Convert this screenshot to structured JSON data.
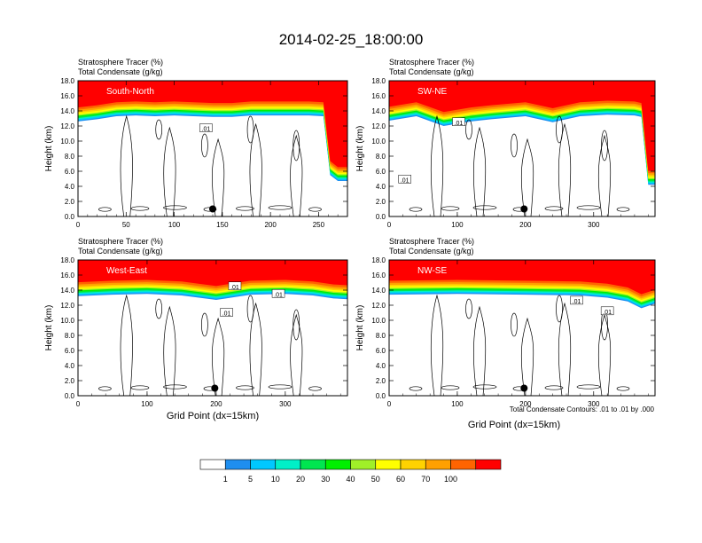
{
  "title": "2014-02-25_18:00:00",
  "panel_titles": [
    "Stratosphere Tracer   (%)",
    "Total Condensate   (g/kg)"
  ],
  "ylabel": "Height (km)",
  "xlabel": "Grid Point (dx=15km)",
  "contour_note": "Total Condensate Contours: .01 to .01 by .000",
  "contour_label": ".01",
  "colorbar": {
    "levels": [
      "1",
      "5",
      "10",
      "20",
      "30",
      "40",
      "50",
      "60",
      "70",
      "100"
    ],
    "colors": [
      "#ffffff",
      "#1e8ef0",
      "#00c8ff",
      "#00f0c8",
      "#00e650",
      "#00f000",
      "#a0f028",
      "#ffff00",
      "#ffd200",
      "#ffa000",
      "#ff6400",
      "#ff0000"
    ]
  },
  "chart_data": [
    {
      "type": "heatmap",
      "name": "South-North",
      "xlim": [
        0,
        280
      ],
      "xticks": [
        "0",
        "50",
        "100",
        "150",
        "200",
        "250"
      ],
      "ylim": [
        0,
        18
      ],
      "yticks": [
        "0.0",
        "2.0",
        "4.0",
        "6.0",
        "8.0",
        "10.0",
        "12.0",
        "14.0",
        "16.0",
        "18.0"
      ],
      "tropopause_km": [
        [
          0,
          14.9
        ],
        [
          20,
          15.2
        ],
        [
          40,
          15.6
        ],
        [
          60,
          15.7
        ],
        [
          80,
          15.6
        ],
        [
          100,
          15.7
        ],
        [
          120,
          15.6
        ],
        [
          140,
          15.5
        ],
        [
          160,
          15.5
        ],
        [
          180,
          15.7
        ],
        [
          200,
          15.7
        ],
        [
          220,
          15.7
        ],
        [
          240,
          15.7
        ],
        [
          255,
          15.6
        ],
        [
          262,
          7.8
        ],
        [
          270,
          7.0
        ],
        [
          280,
          7.0
        ]
      ],
      "dot": [
        140,
        1.0
      ],
      "contour_labels": [
        [
          133,
          11.7
        ]
      ]
    },
    {
      "type": "heatmap",
      "name": "SW-NE",
      "xlim": [
        0,
        390
      ],
      "xticks": [
        "0",
        "100",
        "200",
        "300"
      ],
      "ylim": [
        0,
        18
      ],
      "yticks": [
        "0.0",
        "2.0",
        "4.0",
        "6.0",
        "8.0",
        "10.0",
        "12.0",
        "14.0",
        "16.0",
        "18.0"
      ],
      "tropopause_km": [
        [
          0,
          15.0
        ],
        [
          40,
          15.6
        ],
        [
          80,
          14.3
        ],
        [
          120,
          14.9
        ],
        [
          150,
          15.2
        ],
        [
          200,
          15.6
        ],
        [
          240,
          14.8
        ],
        [
          280,
          15.6
        ],
        [
          320,
          15.8
        ],
        [
          360,
          15.7
        ],
        [
          370,
          15.5
        ],
        [
          380,
          6.5
        ],
        [
          390,
          6.5
        ]
      ],
      "dot": [
        198,
        1.0
      ],
      "contour_labels": [
        [
          102,
          12.5
        ],
        [
          23,
          4.9
        ]
      ]
    },
    {
      "type": "heatmap",
      "name": "West-East",
      "xlim": [
        0,
        390
      ],
      "xticks": [
        "0",
        "100",
        "200",
        "300"
      ],
      "ylim": [
        0,
        18
      ],
      "yticks": [
        "0.0",
        "2.0",
        "4.0",
        "6.0",
        "8.0",
        "10.0",
        "12.0",
        "14.0",
        "16.0",
        "18.0"
      ],
      "tropopause_km": [
        [
          0,
          15.5
        ],
        [
          50,
          15.7
        ],
        [
          100,
          15.8
        ],
        [
          150,
          15.6
        ],
        [
          200,
          15.0
        ],
        [
          250,
          15.7
        ],
        [
          300,
          15.8
        ],
        [
          340,
          15.6
        ],
        [
          370,
          15.2
        ],
        [
          390,
          15.1
        ]
      ],
      "dot": [
        198,
        1.0
      ],
      "contour_labels": [
        [
          227,
          14.5
        ],
        [
          290,
          13.5
        ],
        [
          215,
          11.0
        ]
      ]
    },
    {
      "type": "heatmap",
      "name": "NW-SE",
      "xlim": [
        0,
        390
      ],
      "xticks": [
        "0",
        "100",
        "200",
        "300"
      ],
      "ylim": [
        0,
        18
      ],
      "yticks": [
        "0.0",
        "2.0",
        "4.0",
        "6.0",
        "8.0",
        "10.0",
        "12.0",
        "14.0",
        "16.0",
        "18.0"
      ],
      "tropopause_km": [
        [
          0,
          15.7
        ],
        [
          100,
          15.8
        ],
        [
          200,
          15.7
        ],
        [
          280,
          15.6
        ],
        [
          320,
          15.3
        ],
        [
          350,
          14.8
        ],
        [
          370,
          13.9
        ],
        [
          390,
          14.5
        ]
      ],
      "dot": [
        198,
        1.0
      ],
      "contour_labels": [
        [
          275,
          12.6
        ],
        [
          320,
          11.2
        ]
      ]
    }
  ]
}
